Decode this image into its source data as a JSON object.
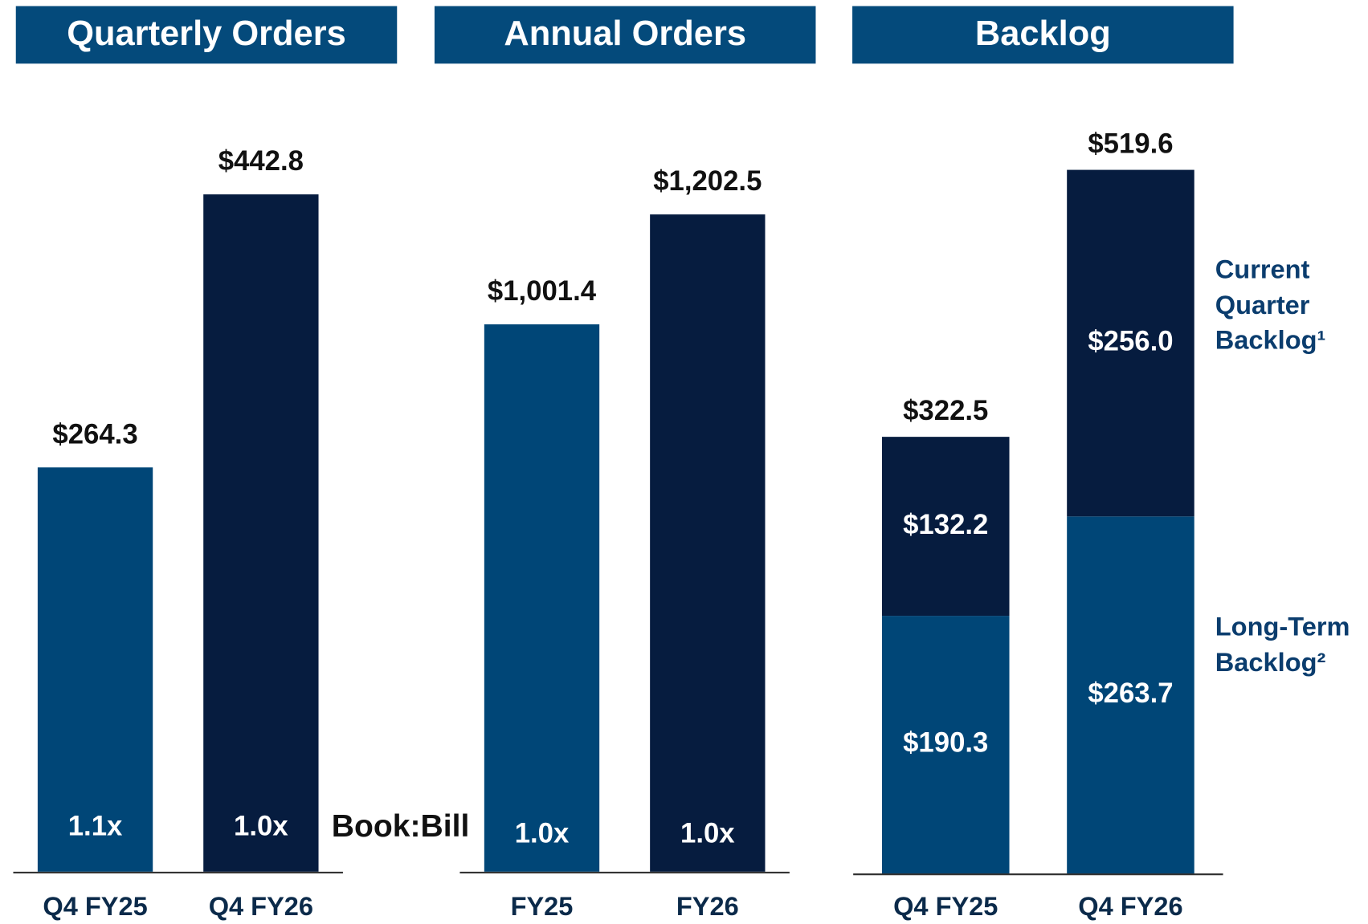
{
  "chart_data": [
    {
      "type": "bar",
      "title": "Quarterly Orders",
      "categories": [
        "Q4 FY25",
        "Q4 FY26"
      ],
      "values": [
        264.3,
        442.8
      ],
      "value_labels": [
        "$264.3",
        "$442.8"
      ],
      "colors": [
        "#004677",
        "#061c3f"
      ],
      "ratio_labels": [
        "1.1x",
        "1.0x"
      ],
      "annotation": "Book:Bill"
    },
    {
      "type": "bar",
      "title": "Annual Orders",
      "categories": [
        "FY25",
        "FY26"
      ],
      "values": [
        1001.4,
        1202.5
      ],
      "value_labels": [
        "$1,001.4",
        "$1,202.5"
      ],
      "colors": [
        "#004677",
        "#061c3f"
      ],
      "ratio_labels": [
        "1.0x",
        "1.0x"
      ]
    },
    {
      "type": "stacked_bar",
      "title": "Backlog",
      "categories": [
        "Q4 FY25",
        "Q4 FY26"
      ],
      "series": [
        {
          "name": "Long-Term Backlog²",
          "color": "#004677",
          "values": [
            190.3,
            263.7
          ],
          "value_labels": [
            "$190.3",
            "$263.7"
          ]
        },
        {
          "name": "Current Quarter Backlog¹",
          "color": "#061c3f",
          "values": [
            132.2,
            256.0
          ],
          "value_labels": [
            "$132.2",
            "$256.0"
          ]
        }
      ],
      "totals": [
        322.5,
        519.6
      ],
      "total_labels": [
        "$322.5",
        "$519.6"
      ]
    }
  ]
}
